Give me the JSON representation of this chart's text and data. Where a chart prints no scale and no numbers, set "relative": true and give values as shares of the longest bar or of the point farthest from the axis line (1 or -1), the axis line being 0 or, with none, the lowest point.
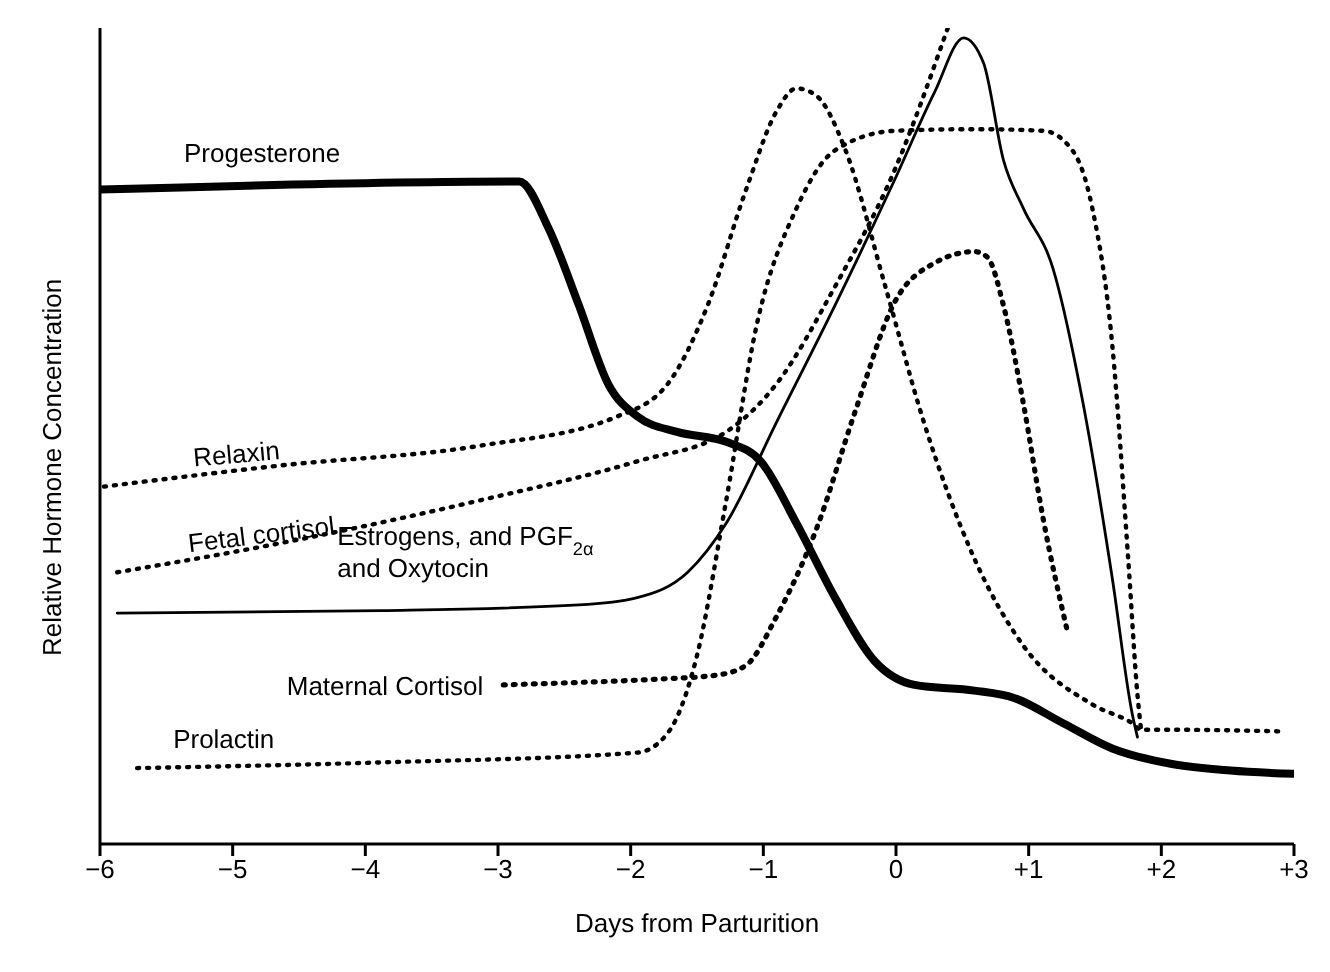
{
  "chart_data": {
    "type": "line",
    "relative": true,
    "xlabel": "Days from Parturition",
    "ylabel": "Relative Hormone Concentration",
    "xlim": [
      -6,
      3
    ],
    "xticks": [
      {
        "value": -6,
        "label": "−6"
      },
      {
        "value": -5,
        "label": "−5"
      },
      {
        "value": -4,
        "label": "−4"
      },
      {
        "value": -3,
        "label": "−3"
      },
      {
        "value": -2,
        "label": "−2"
      },
      {
        "value": -1,
        "label": "−1"
      },
      0,
      {
        "value": 1,
        "label": "+1"
      },
      {
        "value": 2,
        "label": "+2"
      },
      {
        "value": 3,
        "label": "+3"
      }
    ],
    "grid": false,
    "legend": false,
    "marker": "none",
    "series": [
      {
        "name": "Progesterone",
        "color": "#000000",
        "line_style": "solid",
        "x": [
          -6,
          -2.84,
          -2.62,
          -2.39,
          -2.17,
          -1.95,
          -1.65,
          -1.28,
          -1.02,
          -0.75,
          -0.46,
          -0.16,
          0.14,
          0.59,
          0.89,
          1.26,
          1.63,
          2.08,
          2.52,
          3
        ],
        "values": [
          0.802,
          0.812,
          0.755,
          0.66,
          0.564,
          0.524,
          0.505,
          0.493,
          0.469,
          0.393,
          0.302,
          0.224,
          0.195,
          0.188,
          0.179,
          0.148,
          0.117,
          0.098,
          0.09,
          0.086
        ]
      },
      {
        "name": "Relaxin",
        "color": "#000000",
        "line_style": "dotted",
        "x": [
          -5.97,
          -4.63,
          -3.14,
          -2.1,
          -1.72,
          -1.42,
          -1.13,
          -0.9,
          -0.75,
          -0.6,
          -0.38,
          -0.08,
          0.21,
          0.59,
          0.96,
          1.48,
          1.78,
          1.85,
          2.08,
          2.9
        ],
        "values": [
          0.438,
          0.464,
          0.488,
          0.524,
          0.564,
          0.66,
          0.802,
          0.898,
          0.926,
          0.917,
          0.85,
          0.683,
          0.517,
          0.35,
          0.243,
          0.171,
          0.148,
          0.14,
          0.14,
          0.138
        ]
      },
      {
        "name": "Fetal cortisol",
        "color": "#000000",
        "line_style": "dotted",
        "x": [
          -5.87,
          -4.63,
          -3.14,
          -1.95,
          -1.28,
          -0.9,
          -0.46,
          -0.01,
          0.39
        ],
        "values": [
          0.333,
          0.369,
          0.421,
          0.469,
          0.505,
          0.564,
          0.683,
          0.826,
          1
        ]
      },
      {
        "name": "Estrogens, and PGF$_{2α}$\nand Oxytocin",
        "color": "#000000",
        "line_style": "solid",
        "x": [
          -5.87,
          -3.88,
          -2.39,
          -1.95,
          -1.57,
          -1.28,
          -0.9,
          -0.46,
          -0.01,
          0.29,
          0.51,
          0.66,
          0.81,
          0.96,
          1.18,
          1.41,
          1.63,
          1.78,
          1.82
        ],
        "values": [
          0.283,
          0.286,
          0.293,
          0.302,
          0.333,
          0.393,
          0.517,
          0.66,
          0.814,
          0.921,
          0.988,
          0.957,
          0.838,
          0.779,
          0.707,
          0.54,
          0.326,
          0.16,
          0.131
        ]
      },
      {
        "name": "Maternal Cortisol",
        "color": "#000000",
        "line_style": "dotted",
        "x": [
          -2.96,
          -2.39,
          -1.8,
          -1.35,
          -1.13,
          -0.9,
          -0.6,
          -0.31,
          -0.01,
          0.29,
          0.59,
          0.69,
          0.81,
          0.96,
          1.11,
          1.29
        ],
        "values": [
          0.195,
          0.198,
          0.202,
          0.207,
          0.219,
          0.279,
          0.386,
          0.529,
          0.664,
          0.712,
          0.726,
          0.719,
          0.66,
          0.54,
          0.398,
          0.262
        ]
      },
      {
        "name": "Prolactin",
        "color": "#000000",
        "line_style": "dotted",
        "x": [
          -5.72,
          -3.88,
          -1.95,
          -1.72,
          -1.5,
          -1.28,
          -1.05,
          -0.75,
          -0.46,
          -0.01,
          0.59,
          1.11,
          1.33,
          1.48,
          1.63,
          1.75,
          1.82,
          1.85
        ],
        "values": [
          0.093,
          0.1,
          0.112,
          0.136,
          0.231,
          0.421,
          0.636,
          0.779,
          0.85,
          0.874,
          0.876,
          0.874,
          0.85,
          0.779,
          0.612,
          0.35,
          0.183,
          0.136
        ]
      }
    ]
  }
}
